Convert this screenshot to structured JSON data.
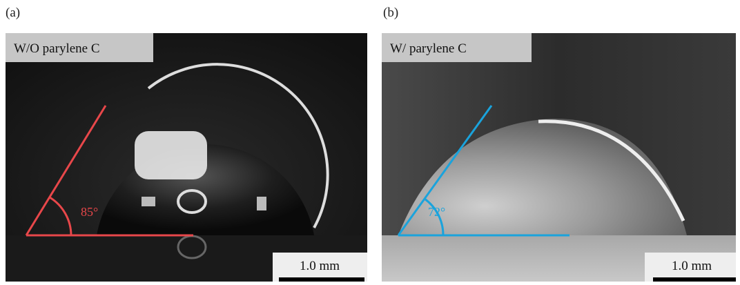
{
  "panels": [
    {
      "label": "(a)",
      "caption": "W/O parylene C",
      "angle": "85°",
      "scale": "1.0 mm"
    },
    {
      "label": "(b)",
      "caption": "W/  parylene C",
      "angle": "72°",
      "scale": "1.0 mm"
    }
  ]
}
